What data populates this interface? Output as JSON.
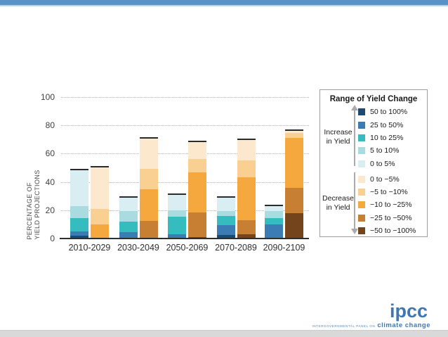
{
  "chart_data": {
    "type": "bar",
    "stacked": true,
    "grid": true,
    "legend_position": "right",
    "ylabel": "PERCENTAGE OF YIELD PROJECTIONS",
    "ylabel_lines": [
      "PERCENTAGE OF",
      "YIELD PROJECTIONS"
    ],
    "ylim": [
      0,
      100
    ],
    "yticks": [
      0,
      20,
      40,
      60,
      80,
      100
    ],
    "categories": [
      "2010-2029",
      "2030-2049",
      "2050-2069",
      "2070-2089",
      "2090-2109"
    ],
    "ranges": [
      {
        "id": "inc50_100",
        "label": "50 to 100%",
        "color": "#1b4a72",
        "group": "increase"
      },
      {
        "id": "inc25_50",
        "label": "25 to 50%",
        "color": "#3c7cb4",
        "group": "increase"
      },
      {
        "id": "inc10_25",
        "label": "10 to 25%",
        "color": "#35bcbf",
        "group": "increase"
      },
      {
        "id": "inc5_10",
        "label": "5 to 10%",
        "color": "#a9dce1",
        "group": "increase"
      },
      {
        "id": "inc0_5",
        "label": "0 to 5%",
        "color": "#d9eef3",
        "group": "increase"
      },
      {
        "id": "dec0_5",
        "label": "0 to −5%",
        "color": "#fce9cd",
        "group": "decrease"
      },
      {
        "id": "dec5_10",
        "label": "−5 to −10%",
        "color": "#fad092",
        "group": "decrease"
      },
      {
        "id": "dec10_25",
        "label": "−10 to −25%",
        "color": "#f5a83e",
        "group": "decrease"
      },
      {
        "id": "dec25_50",
        "label": "−25 to −50%",
        "color": "#c67f33",
        "group": "decrease"
      },
      {
        "id": "dec50_100",
        "label": "−50 to −100%",
        "color": "#74451d",
        "group": "decrease"
      }
    ],
    "bars": [
      {
        "period": "2010-2029",
        "increase": [
          {
            "range": "inc50_100",
            "value": 2
          },
          {
            "range": "inc25_50",
            "value": 3
          },
          {
            "range": "inc10_25",
            "value": 9.5
          },
          {
            "range": "inc5_10",
            "value": 8.5
          },
          {
            "range": "inc0_5",
            "value": 25.5
          }
        ],
        "decrease": [
          {
            "range": "dec10_25",
            "value": 10
          },
          {
            "range": "dec5_10",
            "value": 11
          },
          {
            "range": "dec0_5",
            "value": 29.5
          }
        ]
      },
      {
        "period": "2030-2049",
        "increase": [
          {
            "range": "inc25_50",
            "value": 4.5
          },
          {
            "range": "inc10_25",
            "value": 7.5
          },
          {
            "range": "inc5_10",
            "value": 7.5
          },
          {
            "range": "inc0_5",
            "value": 9.5
          }
        ],
        "decrease": [
          {
            "range": "dec25_50",
            "value": 12.5
          },
          {
            "range": "dec10_25",
            "value": 22.5
          },
          {
            "range": "dec5_10",
            "value": 14.5
          },
          {
            "range": "dec0_5",
            "value": 21
          }
        ]
      },
      {
        "period": "2050-2069",
        "increase": [
          {
            "range": "inc25_50",
            "value": 3
          },
          {
            "range": "inc10_25",
            "value": 12.5
          },
          {
            "range": "inc5_10",
            "value": 4.5
          },
          {
            "range": "inc0_5",
            "value": 11
          }
        ],
        "decrease": [
          {
            "range": "dec50_100",
            "value": 1
          },
          {
            "range": "dec25_50",
            "value": 17.5
          },
          {
            "range": "dec10_25",
            "value": 28.5
          },
          {
            "range": "dec5_10",
            "value": 9
          },
          {
            "range": "dec0_5",
            "value": 12
          }
        ]
      },
      {
        "period": "2070-2089",
        "increase": [
          {
            "range": "inc50_100",
            "value": 2.5
          },
          {
            "range": "inc25_50",
            "value": 7
          },
          {
            "range": "inc10_25",
            "value": 6.5
          },
          {
            "range": "inc5_10",
            "value": 3.5
          },
          {
            "range": "inc0_5",
            "value": 9.5
          }
        ],
        "decrease": [
          {
            "range": "dec50_100",
            "value": 3
          },
          {
            "range": "dec25_50",
            "value": 10
          },
          {
            "range": "dec10_25",
            "value": 30.5
          },
          {
            "range": "dec5_10",
            "value": 12
          },
          {
            "range": "dec0_5",
            "value": 14
          }
        ]
      },
      {
        "period": "2090-2109",
        "increase": [
          {
            "range": "inc25_50",
            "value": 10
          },
          {
            "range": "inc10_25",
            "value": 4.5
          },
          {
            "range": "inc5_10",
            "value": 5
          },
          {
            "range": "inc0_5",
            "value": 3.5
          }
        ],
        "decrease": [
          {
            "range": "dec50_100",
            "value": 18
          },
          {
            "range": "dec25_50",
            "value": 18
          },
          {
            "range": "dec10_25",
            "value": 35
          },
          {
            "range": "dec5_10",
            "value": 3.5
          },
          {
            "range": "dec0_5",
            "value": 1.5
          }
        ]
      }
    ]
  },
  "legend": {
    "title": "Range of Yield Change",
    "increase_label_lines": [
      "Increase",
      "in Yield"
    ],
    "decrease_label_lines": [
      "Decrease",
      "in Yield"
    ]
  },
  "logo": {
    "name": "ipcc",
    "subtitle_small": "INTERGOVERNMENTAL PANEL ON",
    "subtitle_large": "climate change"
  }
}
